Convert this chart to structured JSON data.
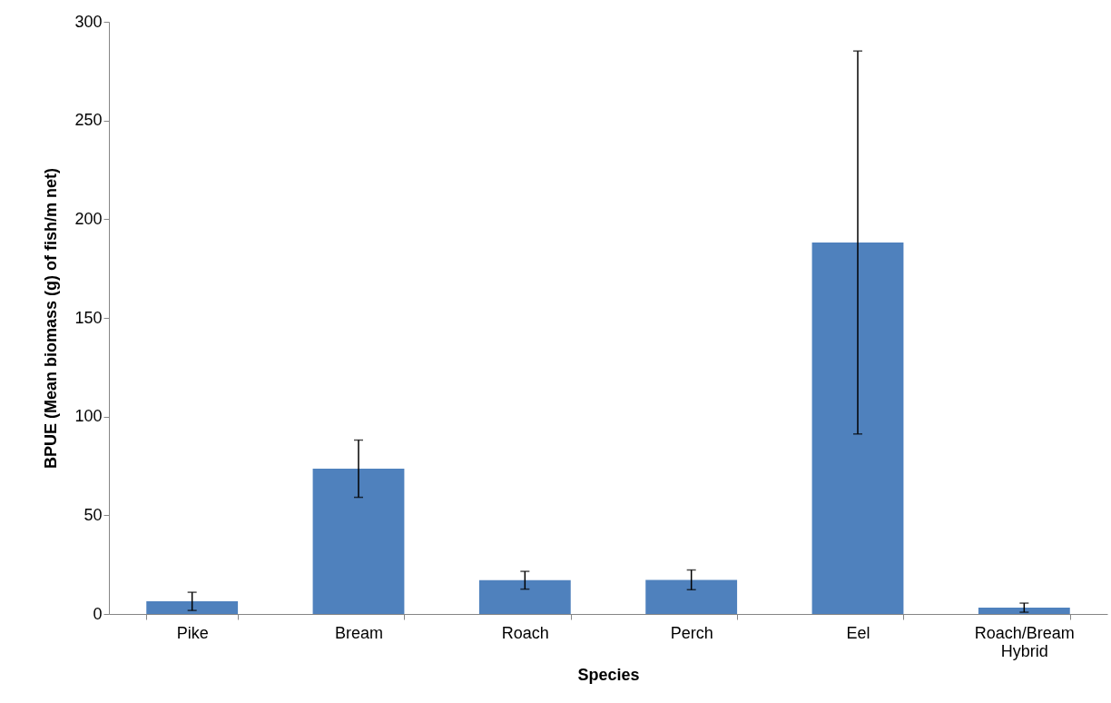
{
  "chart_data": {
    "type": "bar",
    "xlabel": "Species",
    "ylabel": "BPUE (Mean biomass (g) of fish/m net)",
    "categories": [
      "Pike",
      "Bream",
      "Roach",
      "Perch",
      "Eel",
      "Roach/Bream Hybrid"
    ],
    "values": [
      6.4,
      73.6,
      17.1,
      17.3,
      188.2,
      3.2
    ],
    "errors": [
      4.6,
      14.5,
      4.5,
      5,
      97,
      2.3
    ],
    "color": "#4f81bd",
    "ylim": [
      0,
      300
    ],
    "yticks": [
      0,
      50,
      100,
      150,
      200,
      250,
      300
    ],
    "grid": false
  }
}
